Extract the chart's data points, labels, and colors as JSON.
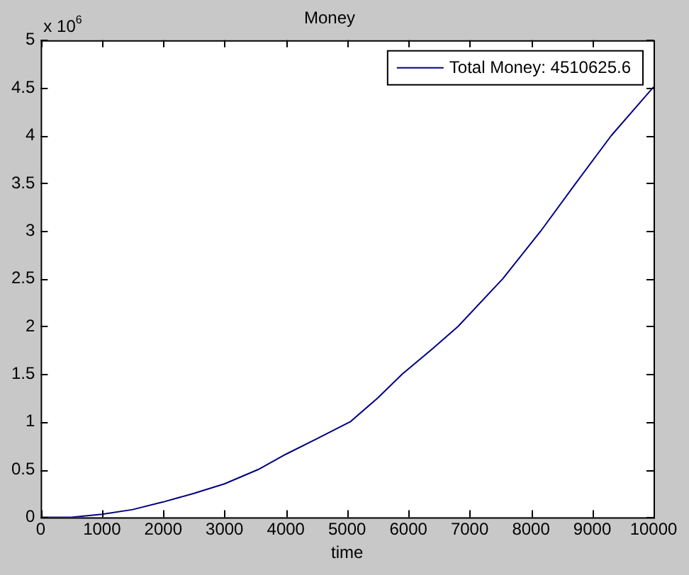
{
  "chart_data": {
    "type": "line",
    "title": "Money",
    "xlabel": "time",
    "annotations": [
      "x 10$^{6}$"
    ],
    "x": [
      0,
      500,
      1000,
      1500,
      2000,
      2500,
      3000,
      3550,
      4000,
      4500,
      5050,
      5500,
      5900,
      6400,
      6810,
      7540,
      8160,
      8730,
      9310,
      10000
    ],
    "series": [
      {
        "name": "Total Money: 4510625.6",
        "color": "#00007f",
        "values": [
          0,
          0,
          0.03,
          0.08,
          0.16,
          0.25,
          0.35,
          0.5,
          0.66,
          0.82,
          1.0,
          1.25,
          1.5,
          1.77,
          2.0,
          2.5,
          3.0,
          3.5,
          4.0,
          4.51
        ]
      }
    ],
    "xlim": [
      0,
      10000
    ],
    "xticks": [
      0,
      1000,
      2000,
      3000,
      4000,
      5000,
      6000,
      7000,
      8000,
      9000,
      10000
    ],
    "ylim": [
      0,
      5
    ],
    "yticks": [
      0,
      0.5,
      1,
      1.5,
      2,
      2.5,
      3,
      3.5,
      4,
      4.5,
      5
    ],
    "grid": false,
    "legend": "top right",
    "marker": "none",
    "line_style": "solid"
  }
}
